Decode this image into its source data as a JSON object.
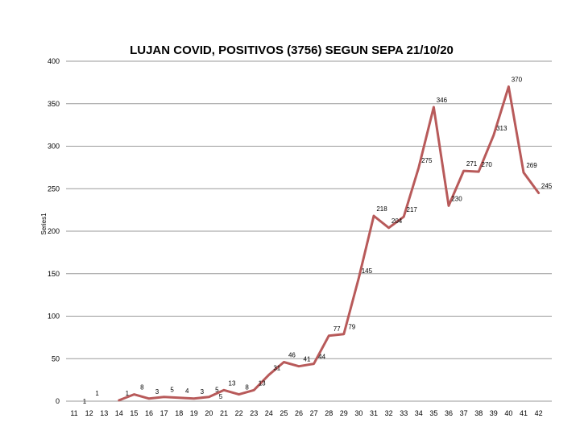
{
  "chart_data": {
    "type": "line",
    "title": "LUJAN COVID, POSITIVOS (3756)  SEGUN SEPA 21/10/20",
    "xlabel": "",
    "ylabel": "Series1",
    "ylim": [
      0,
      400
    ],
    "yticks": [
      "0",
      "50",
      "100",
      "150",
      "200",
      "250",
      "300",
      "350",
      "400"
    ],
    "categories": [
      "11",
      "12",
      "13",
      "14",
      "15",
      "16",
      "17",
      "18",
      "19",
      "20",
      "21",
      "22",
      "23",
      "24",
      "25",
      "26",
      "27",
      "28",
      "29",
      "30",
      "31",
      "32",
      "33",
      "34",
      "35",
      "36",
      "37",
      "38",
      "39",
      "40",
      "41",
      "42"
    ],
    "grid": true,
    "legend": "none",
    "line_color": "#b85a5a",
    "series": [
      {
        "values": [
          null,
          1,
          null,
          1,
          8,
          3,
          5,
          4,
          3,
          5,
          13,
          8,
          13,
          31,
          46,
          41,
          44,
          77,
          79,
          145,
          218,
          204,
          217,
          275,
          346,
          230,
          271,
          270,
          313,
          370,
          269,
          245
        ],
        "labels": [
          null,
          "1",
          null,
          "1",
          "8",
          "3",
          "5",
          "4",
          "3",
          "5",
          "13",
          "8",
          "13",
          "31",
          "46",
          "41",
          "44",
          "77",
          "79",
          "145",
          "218",
          "204",
          "217",
          "275",
          "346",
          "230",
          "271",
          "270",
          "313",
          "370",
          "269",
          "245"
        ]
      }
    ],
    "extra_labels": [
      "1",
      "5"
    ]
  }
}
